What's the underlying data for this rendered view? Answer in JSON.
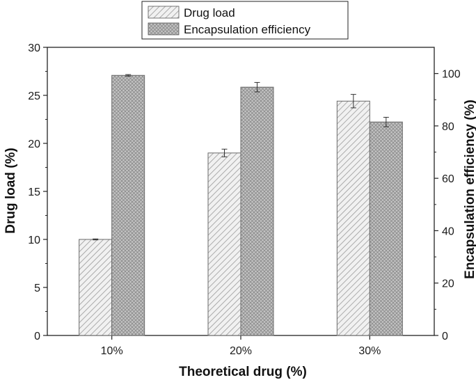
{
  "chart_data": {
    "type": "bar",
    "title": "",
    "xlabel": "Theoretical drug (%)",
    "ylabel": "Drug load (%)",
    "y2label": "Encapsulation efficiency (%)",
    "categories": [
      "10%",
      "20%",
      "30%"
    ],
    "ylim": [
      0,
      30
    ],
    "y2lim": [
      0,
      110
    ],
    "yticks": [
      "0",
      "5",
      "10",
      "15",
      "20",
      "25",
      "30"
    ],
    "y2ticks": [
      "0",
      "20",
      "40",
      "60",
      "80",
      "100"
    ],
    "legend_position": "top-center",
    "series": [
      {
        "name": "Drug load",
        "axis": "left",
        "pattern": "diagonal-hatch",
        "values": [
          10.0,
          19.0,
          24.4
        ],
        "errors": [
          0.05,
          0.4,
          0.7
        ]
      },
      {
        "name": "Encapsulation efficiency",
        "axis": "right",
        "pattern": "cross-hatch",
        "values": [
          99.3,
          94.8,
          81.5
        ],
        "errors": [
          0.3,
          1.8,
          1.8
        ]
      }
    ]
  }
}
